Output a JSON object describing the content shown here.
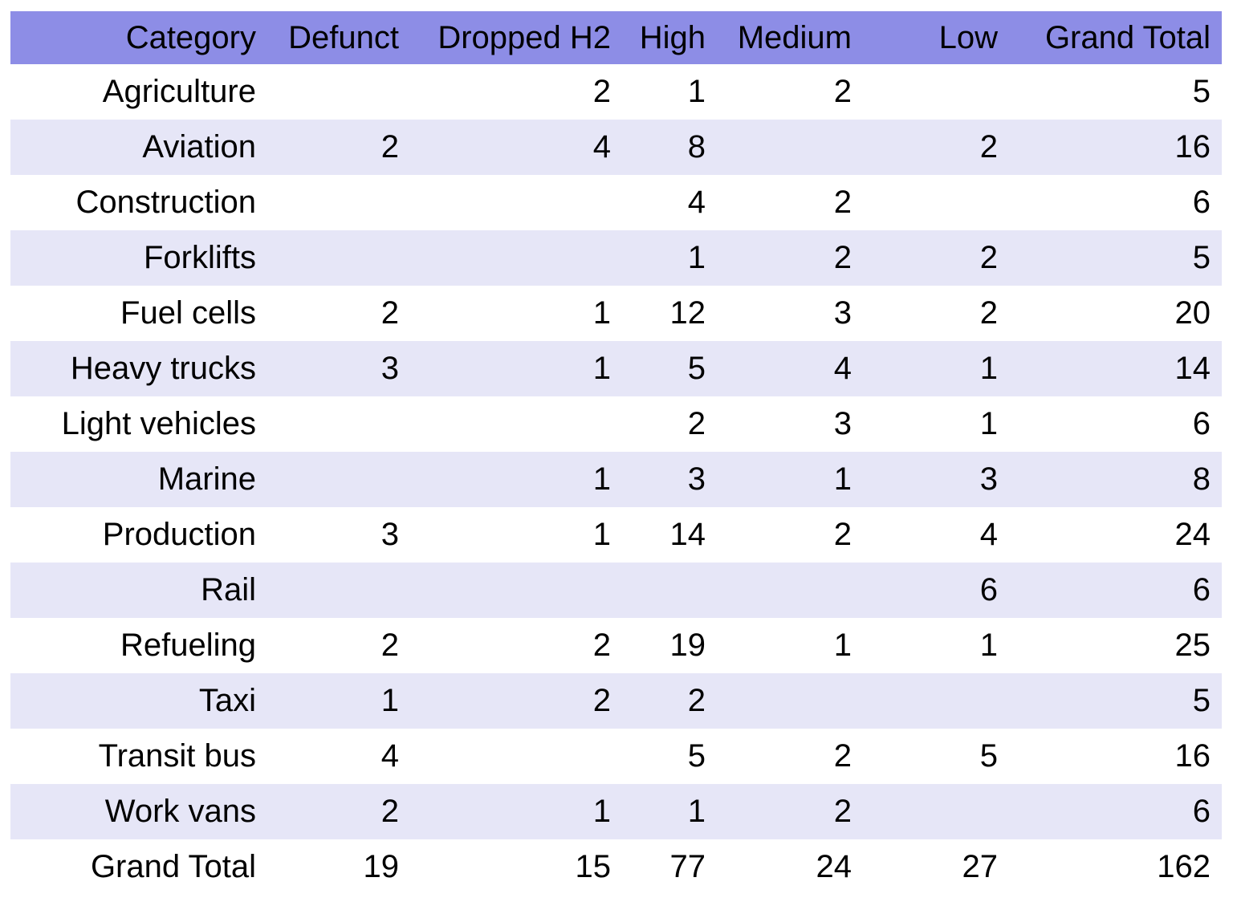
{
  "chart_data": {
    "type": "table",
    "columns": [
      "Category",
      "Defunct",
      "Dropped H2",
      "High",
      "Medium",
      "Low",
      "Grand Total"
    ],
    "rows": [
      [
        "Agriculture",
        "",
        "2",
        "1",
        "2",
        "",
        "5"
      ],
      [
        "Aviation",
        "2",
        "4",
        "8",
        "",
        "2",
        "16"
      ],
      [
        "Construction",
        "",
        "",
        "4",
        "2",
        "",
        "6"
      ],
      [
        "Forklifts",
        "",
        "",
        "1",
        "2",
        "2",
        "5"
      ],
      [
        "Fuel cells",
        "2",
        "1",
        "12",
        "3",
        "2",
        "20"
      ],
      [
        "Heavy trucks",
        "3",
        "1",
        "5",
        "4",
        "1",
        "14"
      ],
      [
        "Light vehicles",
        "",
        "",
        "2",
        "3",
        "1",
        "6"
      ],
      [
        "Marine",
        "",
        "1",
        "3",
        "1",
        "3",
        "8"
      ],
      [
        "Production",
        "3",
        "1",
        "14",
        "2",
        "4",
        "24"
      ],
      [
        "Rail",
        "",
        "",
        "",
        "",
        "6",
        "6"
      ],
      [
        "Refueling",
        "2",
        "2",
        "19",
        "1",
        "1",
        "25"
      ],
      [
        "Taxi",
        "1",
        "2",
        "2",
        "",
        "",
        "5"
      ],
      [
        "Transit bus",
        "4",
        "",
        "5",
        "2",
        "5",
        "16"
      ],
      [
        "Work vans",
        "2",
        "1",
        "1",
        "2",
        "",
        "6"
      ]
    ],
    "total_row": [
      "Grand Total",
      "19",
      "15",
      "77",
      "24",
      "27",
      "162"
    ],
    "colors": {
      "header_background": "#8d8de6",
      "band_background": "#e6e6f7",
      "plain_background": "#ffffff"
    }
  }
}
